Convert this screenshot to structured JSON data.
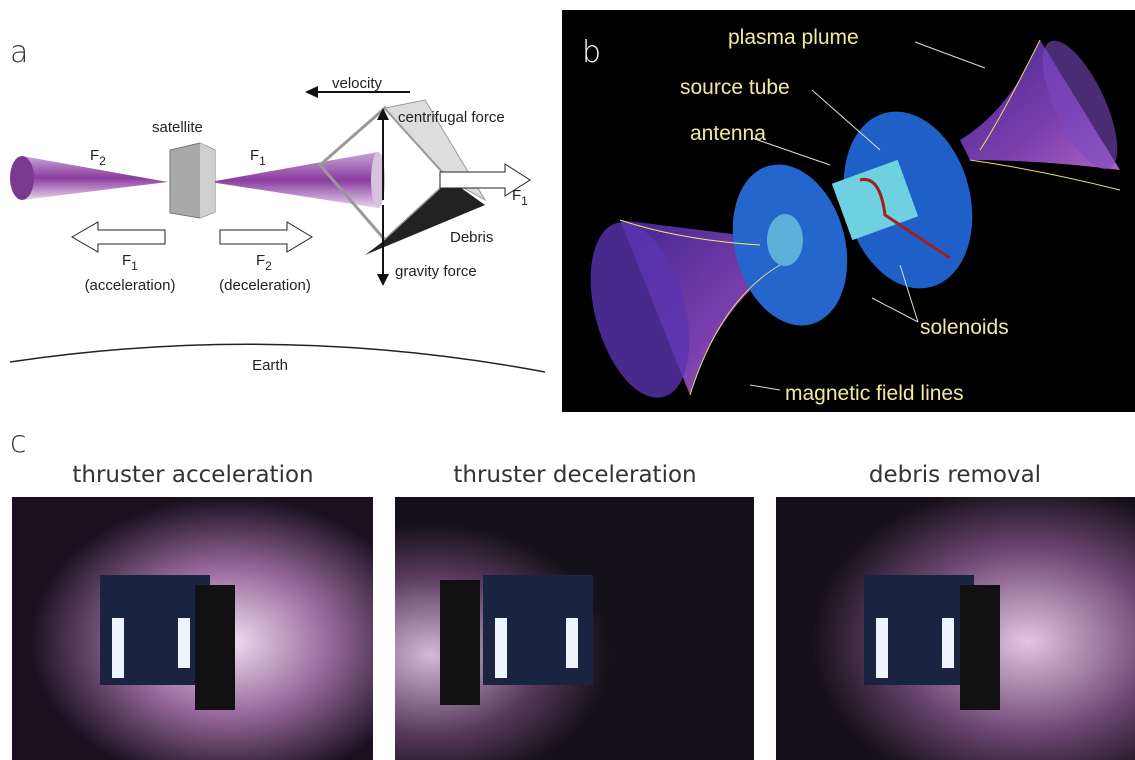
{
  "panel_a": {
    "label": "a",
    "velocity": "velocity",
    "centrifugal_force": "centrifugal force",
    "satellite": "satellite",
    "left_plume_force": {
      "symbol": "F",
      "subscript": "2"
    },
    "right_plume_force": {
      "symbol": "F",
      "subscript": "1"
    },
    "debris_force": {
      "symbol": "F",
      "subscript": "1"
    },
    "debris": "Debris",
    "gravity_force": "gravity force",
    "acceleration_force": {
      "symbol": "F",
      "subscript": "1",
      "caption": "(acceleration)"
    },
    "deceleration_force": {
      "symbol": "F",
      "subscript": "2",
      "caption": "(deceleration)"
    },
    "earth": "Earth"
  },
  "panel_b": {
    "label": "b",
    "plasma_plume": "plasma plume",
    "source_tube": "source tube",
    "antenna": "antenna",
    "solenoids": "solenoids",
    "magnetic_field_lines": "magnetic field lines"
  },
  "panel_c": {
    "label": "c",
    "photos": [
      {
        "title": "thruster acceleration"
      },
      {
        "title": "thruster deceleration"
      },
      {
        "title": "debris removal"
      }
    ]
  }
}
